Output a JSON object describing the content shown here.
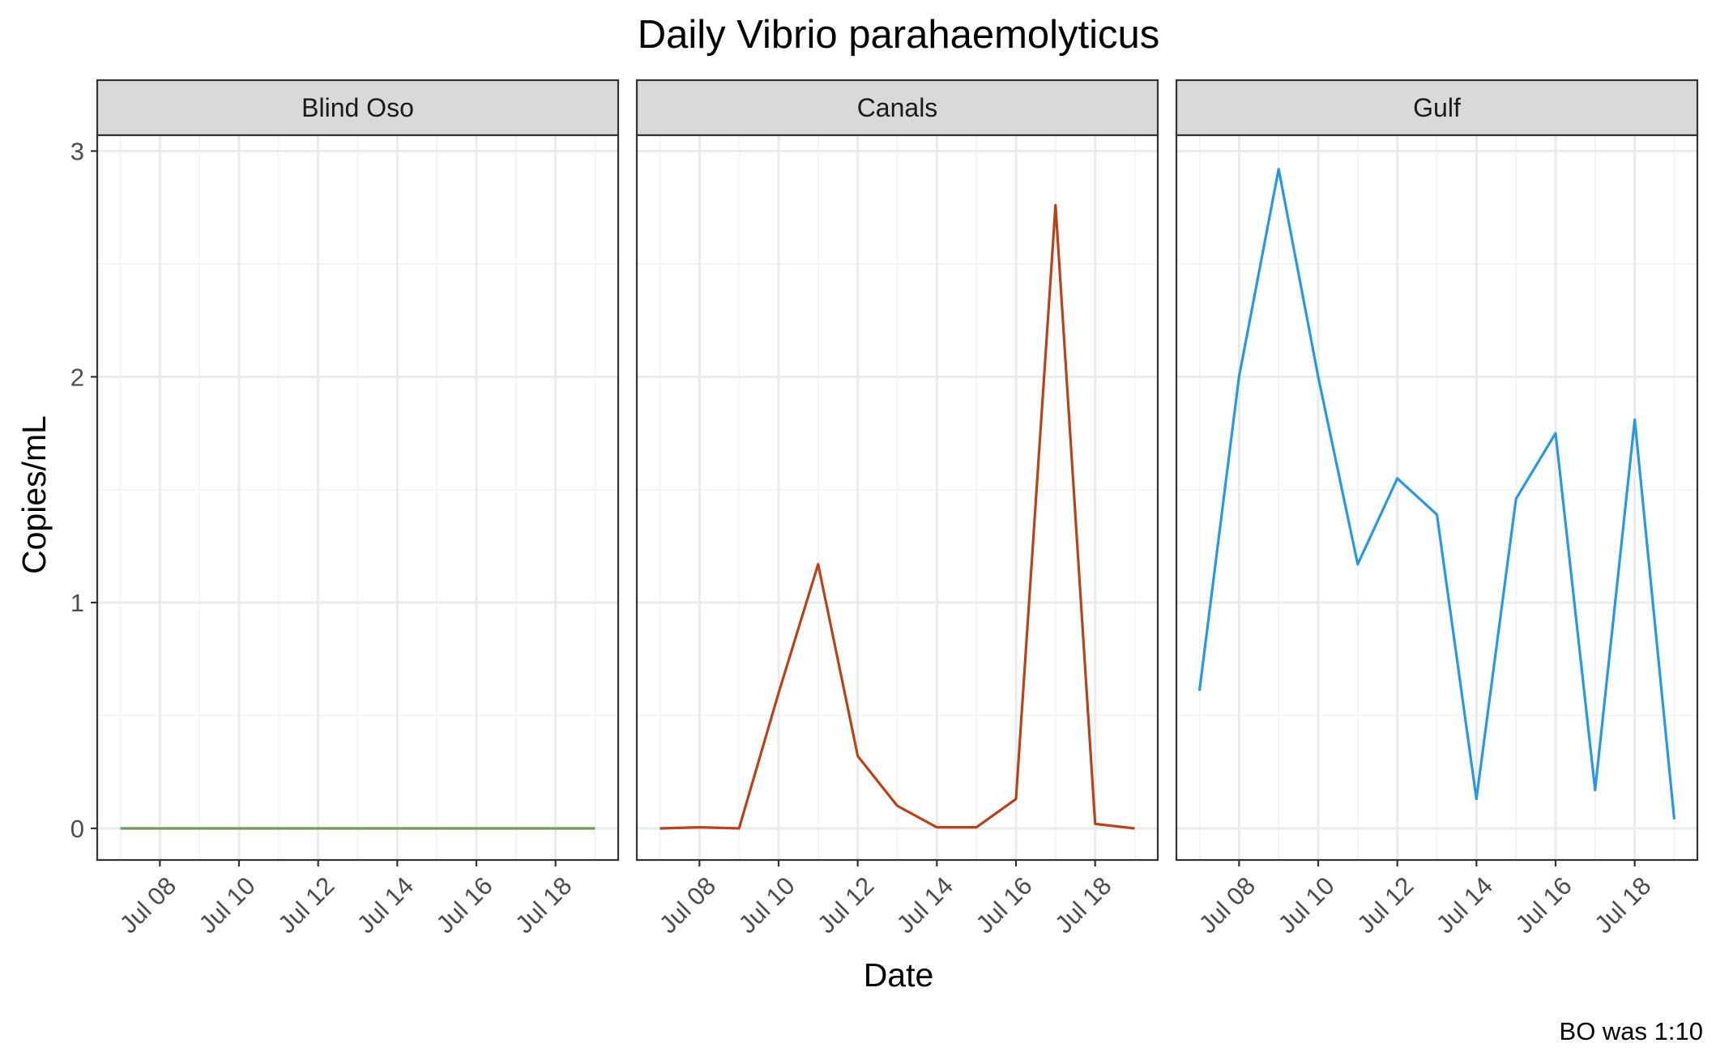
{
  "chart_data": {
    "type": "line",
    "title": "Daily Vibrio parahaemolyticus",
    "xlabel": "Date",
    "ylabel": "Copies/mL",
    "caption": "BO was 1:10",
    "x": [
      "2021-07-07",
      "2021-07-08",
      "2021-07-09",
      "2021-07-10",
      "2021-07-11",
      "2021-07-12",
      "2021-07-13",
      "2021-07-14",
      "2021-07-15",
      "2021-07-16",
      "2021-07-17",
      "2021-07-18",
      "2021-07-19"
    ],
    "x_ticks": [
      "2021-07-08",
      "2021-07-10",
      "2021-07-12",
      "2021-07-14",
      "2021-07-16",
      "2021-07-18"
    ],
    "x_tick_labels": [
      "Jul 08",
      "Jul 10",
      "Jul 12",
      "Jul 14",
      "Jul 16",
      "Jul 18"
    ],
    "xlim": [
      "2021-07-06T10:00",
      "2021-07-19T14:00"
    ],
    "y_ticks": [
      0,
      1,
      2,
      3
    ],
    "ylim": [
      -0.14,
      3.07
    ],
    "grid": true,
    "legend": "none",
    "panels": [
      {
        "label": "Blind Oso",
        "color": "#76985a",
        "values": [
          0,
          0,
          0,
          0,
          0,
          0,
          0,
          0,
          0,
          0,
          0,
          0,
          0
        ]
      },
      {
        "label": "Canals",
        "color": "#b5431b",
        "values": [
          0,
          0.005,
          0,
          0.6,
          1.17,
          0.32,
          0.1,
          0.005,
          0.005,
          0.13,
          2.76,
          0.02,
          0
        ]
      },
      {
        "label": "Gulf",
        "color": "#2b97e0",
        "values": [
          0.61,
          2.0,
          2.92,
          2.0,
          1.17,
          1.55,
          1.39,
          0.13,
          1.46,
          1.75,
          0.17,
          1.81,
          0.04
        ]
      }
    ]
  }
}
